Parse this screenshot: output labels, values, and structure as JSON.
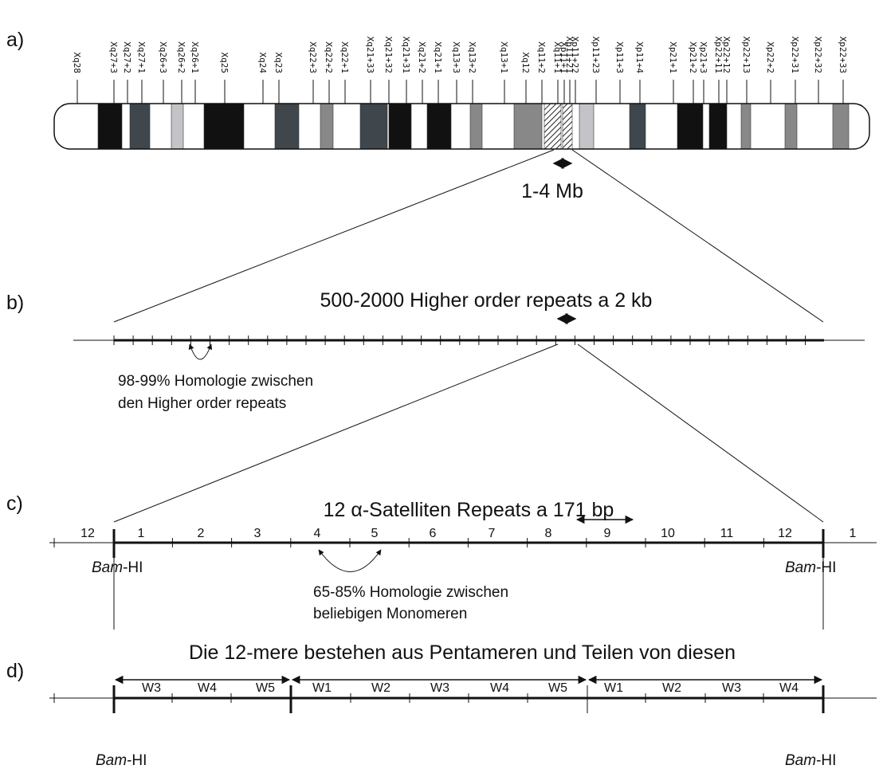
{
  "panel_labels": [
    "a)",
    "b)",
    "c)",
    "d)"
  ],
  "bands": [
    "Xq28",
    "Xq27+3",
    "Xq27+2",
    "Xq27+1",
    "Xq26+3",
    "Xq26+2",
    "Xq26+1",
    "Xq25",
    "Xq24",
    "Xq23",
    "Xq22+3",
    "Xq22+2",
    "Xq22+1",
    "Xq21+33",
    "Xq21+32",
    "Xq21+31",
    "Xq21+2",
    "Xq21+1",
    "Xq13+3",
    "Xq13+2",
    "Xq13+1",
    "Xq12",
    "Xq11+2",
    "Xq11+1",
    "Xp11+1",
    "Xp11+21",
    "Xp11+22",
    "Xp11+23",
    "Xp11+3",
    "Xp11+4",
    "Xp21+1",
    "Xp21+2",
    "Xp21+3",
    "Xp22+11",
    "Xp22+12",
    "Xp22+13",
    "Xp22+2",
    "Xp22+31",
    "Xp22+32",
    "Xp22+33"
  ],
  "centromere_size": "1-4 Mb",
  "higher_order": {
    "title": "500-2000 Higher order repeats a 2 kb",
    "homology": [
      "98-99% Homologie zwischen",
      "den Higher order repeats"
    ]
  },
  "monomers": {
    "title": "12 α-Satelliten Repeats a 171 bp",
    "numbers": [
      12,
      1,
      2,
      3,
      4,
      5,
      6,
      7,
      8,
      9,
      10,
      11,
      12,
      1
    ],
    "homology": [
      "65-85% Homologie zwischen",
      "beliebigen Monomeren"
    ]
  },
  "site": {
    "italic": "Bam",
    "rest": "-HI"
  },
  "pentamers": {
    "title": "Die 12-mere bestehen aus Pentameren und Teilen von diesen",
    "units": [
      "W3",
      "W4",
      "W5",
      "W1",
      "W2",
      "W3",
      "W4",
      "W5",
      "W1",
      "W2",
      "W3",
      "W4"
    ]
  }
}
